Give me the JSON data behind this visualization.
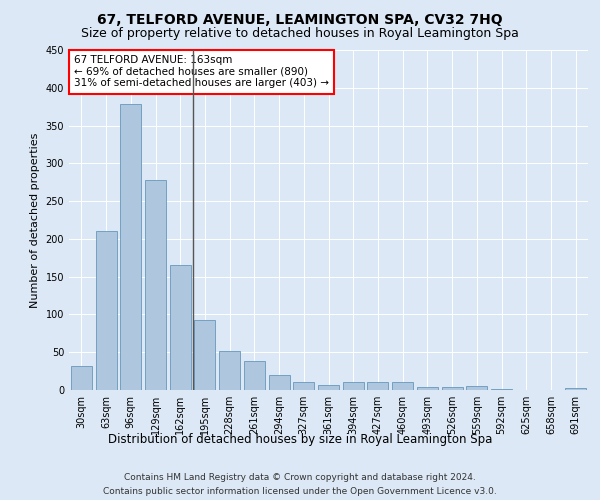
{
  "title": "67, TELFORD AVENUE, LEAMINGTON SPA, CV32 7HQ",
  "subtitle": "Size of property relative to detached houses in Royal Leamington Spa",
  "xlabel": "Distribution of detached houses by size in Royal Leamington Spa",
  "ylabel": "Number of detached properties",
  "categories": [
    "30sqm",
    "63sqm",
    "96sqm",
    "129sqm",
    "162sqm",
    "195sqm",
    "228sqm",
    "261sqm",
    "294sqm",
    "327sqm",
    "361sqm",
    "394sqm",
    "427sqm",
    "460sqm",
    "493sqm",
    "526sqm",
    "559sqm",
    "592sqm",
    "625sqm",
    "658sqm",
    "691sqm"
  ],
  "values": [
    32,
    210,
    378,
    278,
    165,
    93,
    51,
    39,
    20,
    11,
    6,
    11,
    11,
    10,
    4,
    4,
    5,
    1,
    0,
    0,
    3
  ],
  "bar_color": "#aec6de",
  "bar_edge_color": "#6699bb",
  "vline_x_idx": 4,
  "vline_color": "#555555",
  "annotation_text": "67 TELFORD AVENUE: 163sqm\n← 69% of detached houses are smaller (890)\n31% of semi-detached houses are larger (403) →",
  "annotation_box_color": "white",
  "annotation_box_edge": "red",
  "ylim": [
    0,
    450
  ],
  "yticks": [
    0,
    50,
    100,
    150,
    200,
    250,
    300,
    350,
    400,
    450
  ],
  "background_color": "#dce8f5",
  "grid_color": "#ffffff",
  "footer_line1": "Contains HM Land Registry data © Crown copyright and database right 2024.",
  "footer_line2": "Contains public sector information licensed under the Open Government Licence v3.0.",
  "title_fontsize": 10,
  "subtitle_fontsize": 9,
  "ylabel_fontsize": 8,
  "xlabel_fontsize": 8.5,
  "tick_fontsize": 7,
  "annotation_fontsize": 7.5,
  "footer_fontsize": 6.5
}
